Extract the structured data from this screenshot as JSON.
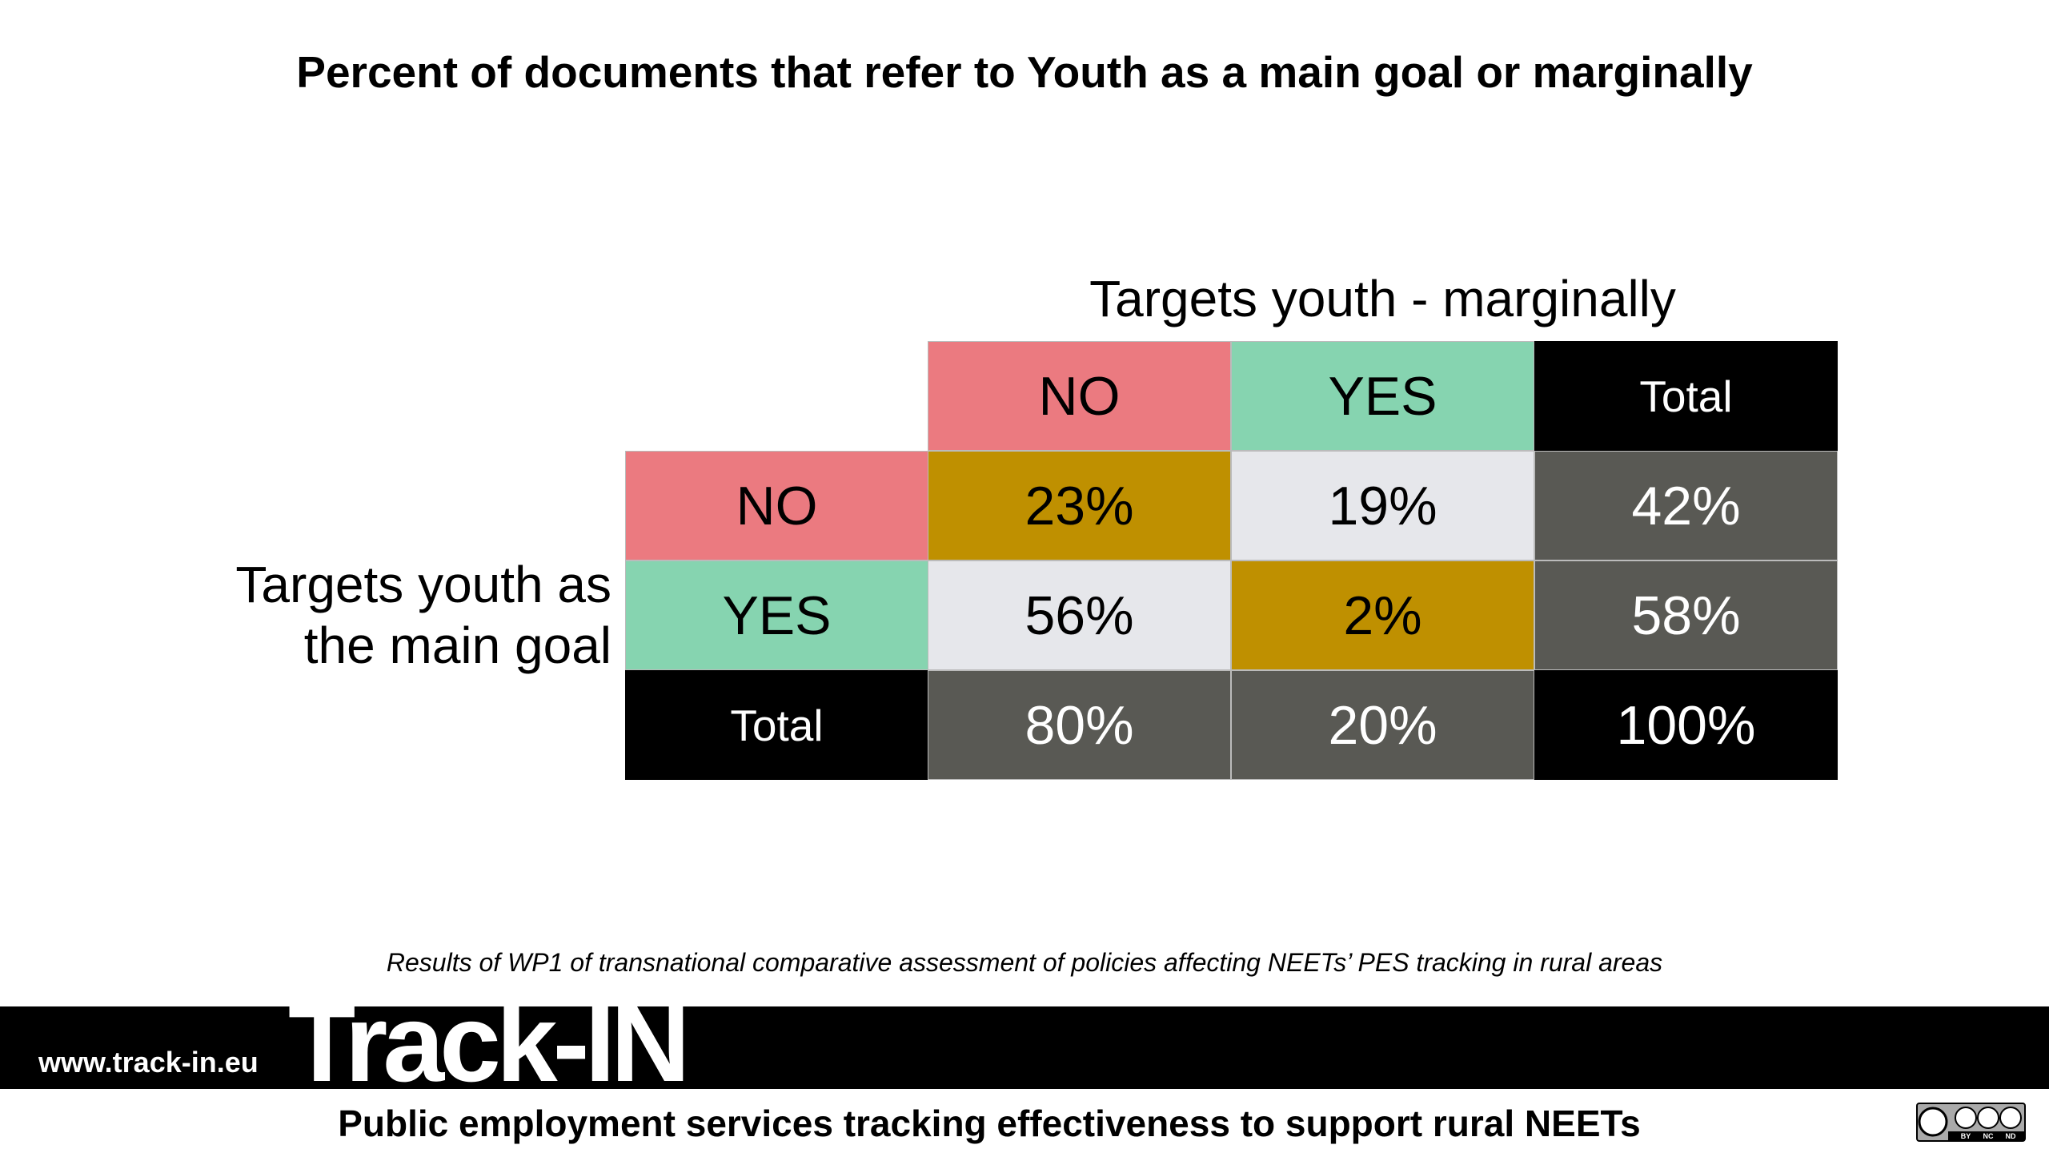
{
  "title": "Percent of documents that refer to Youth as a main goal or marginally",
  "table": {
    "column_header": "Targets youth - marginally",
    "row_header": "Targets youth as the main goal",
    "columns": [
      "NO",
      "YES",
      "Total"
    ],
    "rows": [
      [
        "NO",
        "23%",
        "19%",
        "42%"
      ],
      [
        "YES",
        "56%",
        "2%",
        "58%"
      ],
      [
        "Total",
        "80%",
        "20%",
        "100%"
      ]
    ]
  },
  "footnote": "Results of WP1 of transnational comparative assessment of policies affecting NEETs’ PES tracking in rural areas",
  "footer": {
    "url": "www.track-in.eu",
    "logo": "Track-IN",
    "tagline": "Public employment services tracking effectiveness to support rural NEETs",
    "license": [
      "BY",
      "NC",
      "ND"
    ]
  }
}
